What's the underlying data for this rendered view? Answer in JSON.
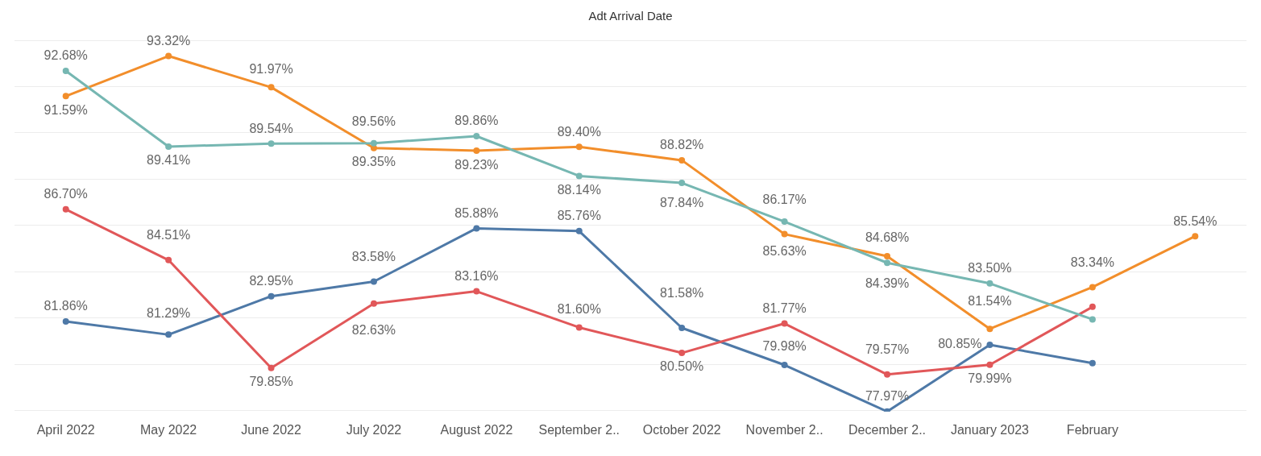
{
  "chart_data": {
    "type": "line",
    "title": "Adt Arrival Date",
    "categories": [
      "April 2022",
      "May 2022",
      "June 2022",
      "July 2022",
      "August 2022",
      "September 2..",
      "October 2022",
      "November 2..",
      "December 2..",
      "January 2023",
      "February",
      null
    ],
    "series": [
      {
        "color": "#76b7b2",
        "values": [
          92.68,
          89.41,
          89.54,
          89.56,
          89.86,
          88.14,
          87.84,
          86.17,
          84.39,
          83.5,
          81.95,
          null
        ],
        "value_labels": [
          "92.68%",
          "89.41%",
          "89.54%",
          "89.56%",
          "89.86%",
          "88.14%",
          "87.84%",
          "86.17%",
          "84.39%",
          "83.50%",
          null,
          null
        ]
      },
      {
        "color": "#f28e2b",
        "values": [
          91.59,
          93.32,
          91.97,
          89.35,
          89.23,
          89.4,
          88.82,
          85.63,
          84.68,
          81.54,
          83.34,
          85.54
        ],
        "value_labels": [
          "91.59%",
          "93.32%",
          "91.97%",
          "89.35%",
          "89.23%",
          "89.40%",
          "88.82%",
          "85.63%",
          "84.68%",
          "81.54%",
          "83.34%",
          "85.54%"
        ]
      },
      {
        "color": "#e15759",
        "values": [
          86.7,
          84.51,
          79.85,
          82.63,
          83.16,
          81.6,
          80.5,
          81.77,
          79.57,
          79.99,
          82.49,
          null
        ],
        "value_labels": [
          "86.70%",
          "84.51%",
          "79.85%",
          "82.63%",
          "83.16%",
          "81.60%",
          "80.50%",
          "81.77%",
          "79.57%",
          "79.99%",
          null,
          null
        ]
      },
      {
        "color": "#4e79a7",
        "values": [
          81.86,
          81.29,
          82.95,
          83.58,
          85.88,
          85.76,
          81.58,
          79.98,
          77.97,
          80.85,
          80.06,
          null
        ],
        "value_labels": [
          "81.86%",
          "81.29%",
          "82.95%",
          "83.58%",
          "85.88%",
          "85.76%",
          "81.58%",
          "79.98%",
          "77.97%",
          "80.85%",
          null,
          null
        ]
      }
    ],
    "yticks": [
      {
        "value": 78,
        "label": null
      },
      {
        "value": 80,
        "label": null
      },
      {
        "value": 82,
        "label": null
      },
      {
        "value": 84,
        "label": null
      },
      {
        "value": 86,
        "label": null
      },
      {
        "value": 88,
        "label": null
      },
      {
        "value": 90,
        "label": null
      },
      {
        "value": 92,
        "label": null
      },
      {
        "value": 94,
        "label": null
      }
    ],
    "tick_labels": "x",
    "grid": "y",
    "legend": false,
    "marker": "circle",
    "line_style": "solid"
  }
}
